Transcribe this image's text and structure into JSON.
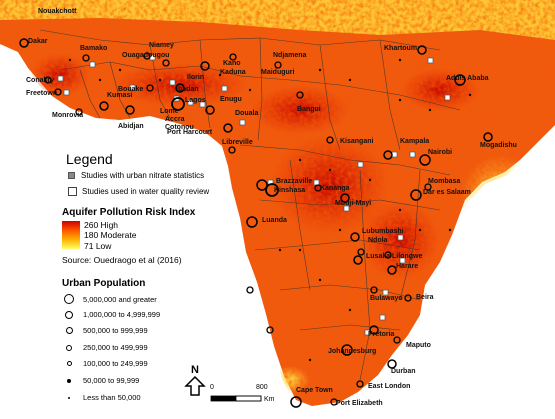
{
  "cities": [
    {
      "name": "Nouakchott"
    },
    {
      "name": "Dakar"
    },
    {
      "name": "Bamako"
    },
    {
      "name": "Niamey"
    },
    {
      "name": "Ouagadougou"
    },
    {
      "name": "Ndjamena"
    },
    {
      "name": "Kano"
    },
    {
      "name": "Kaduna"
    },
    {
      "name": "Maiduguri"
    },
    {
      "name": "Khartoum"
    },
    {
      "name": "Conakry"
    },
    {
      "name": "Freetown"
    },
    {
      "name": "Bouake"
    },
    {
      "name": "Ilorin"
    },
    {
      "name": "Ibadan"
    },
    {
      "name": "Lagos"
    },
    {
      "name": "Enugu"
    },
    {
      "name": "Addis Ababa"
    },
    {
      "name": "Monrovia"
    },
    {
      "name": "Kumasi"
    },
    {
      "name": "Abidjan"
    },
    {
      "name": "Lome"
    },
    {
      "name": "Accra"
    },
    {
      "name": "Cotonou"
    },
    {
      "name": "Douala"
    },
    {
      "name": "Bangui"
    },
    {
      "name": "Port Harcourt"
    },
    {
      "name": "Libreville"
    },
    {
      "name": "Kisangani"
    },
    {
      "name": "Kampala"
    },
    {
      "name": "Nairobi"
    },
    {
      "name": "Mogadishu"
    },
    {
      "name": "Brazzaville"
    },
    {
      "name": "Kinshasa"
    },
    {
      "name": "Kananga"
    },
    {
      "name": "Mombasa"
    },
    {
      "name": "Dar es Salaam"
    },
    {
      "name": "Mbuji-Mayi"
    },
    {
      "name": "Luanda"
    },
    {
      "name": "Lubumbashi"
    },
    {
      "name": "Ndola"
    },
    {
      "name": "Lusaka"
    },
    {
      "name": "Lilongwe"
    },
    {
      "name": "Harare"
    },
    {
      "name": "Bulawayo"
    },
    {
      "name": "Beira"
    },
    {
      "name": "Pretoria"
    },
    {
      "name": "Maputo"
    },
    {
      "name": "Johannesburg"
    },
    {
      "name": "Durban"
    },
    {
      "name": "East London"
    },
    {
      "name": "Cape Town"
    },
    {
      "name": "Port Elizabeth"
    }
  ],
  "legend": {
    "title": "Legend",
    "urban_stats": "Studies with urban nitrate statistics",
    "water_review": "Studies used in water quality review",
    "index_title": "Aquifer Pollution Risk Index",
    "index_high": "260 High",
    "index_mid": "180 Moderate",
    "index_low": "71 Low",
    "source": "Source: Ouedraogo et al (2016)",
    "pop_title": "Urban Population",
    "pop_classes": [
      "5,000,000 and greater",
      "1,000,000 to 4,999,999",
      "500,000 to 999,999",
      "250,000 to 499,999",
      "100,000 to 249,999",
      "50,000 to 99,999",
      "Less than 50,000"
    ]
  },
  "north_label": "N",
  "scale": {
    "zero": "0",
    "mid": "800",
    "unit": "Km"
  },
  "colors": {
    "high": "#cc0000",
    "moderate": "#ff6a00",
    "low": "#ffff66",
    "sea": "#ffffff"
  }
}
